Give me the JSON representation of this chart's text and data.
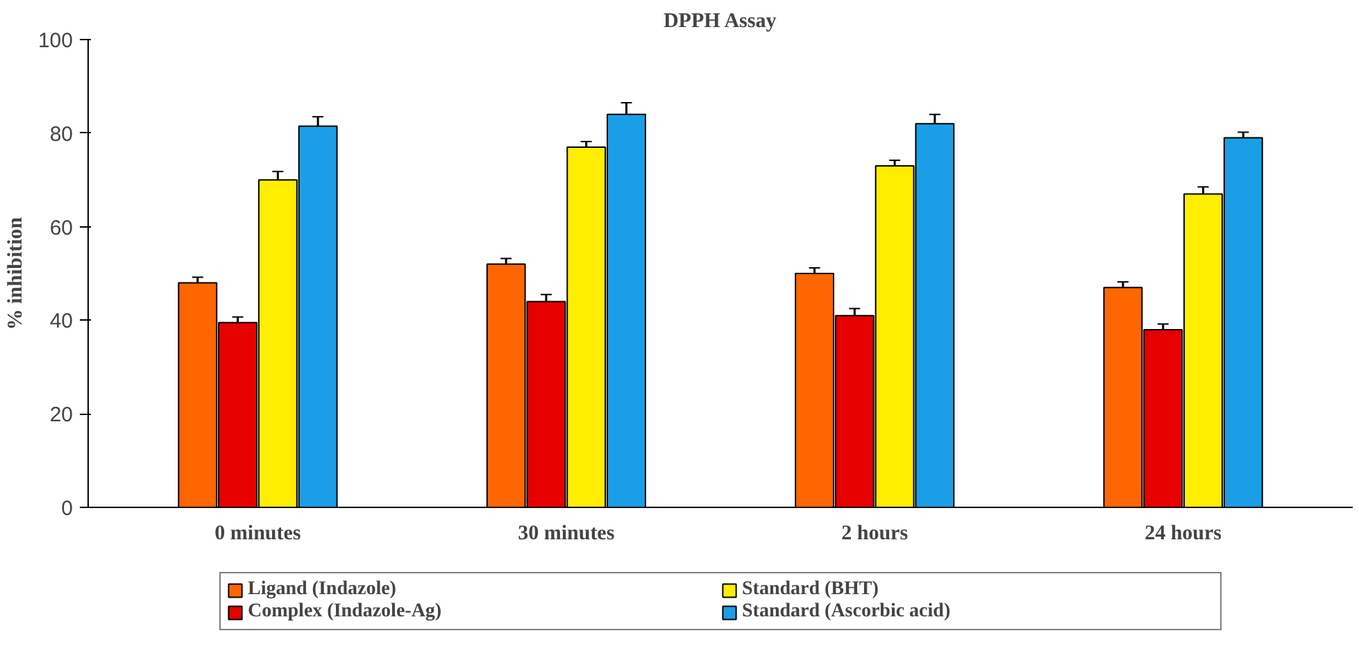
{
  "chart_data": {
    "type": "bar",
    "title": "DPPH Assay",
    "ylabel": "% inhibition",
    "categories": [
      "0 minutes",
      "30 minutes",
      "2 hours",
      "24 hours"
    ],
    "series": [
      {
        "name": "Ligand (Indazole)",
        "color": "#ff6600",
        "values": [
          48,
          52,
          50,
          47
        ],
        "errors": [
          1.2,
          1.2,
          1.2,
          1.2
        ]
      },
      {
        "name": "Complex (Indazole-Ag)",
        "color": "#e60000",
        "values": [
          39.5,
          44,
          41,
          38
        ],
        "errors": [
          1.2,
          1.5,
          1.5,
          1.2
        ]
      },
      {
        "name": "Standard (BHT)",
        "color": "#ffee00",
        "values": [
          70,
          77,
          73,
          67
        ],
        "errors": [
          1.8,
          1.2,
          1.2,
          1.5
        ]
      },
      {
        "name": "Standard (Ascorbic acid)",
        "color": "#1a9fe6",
        "values": [
          81.5,
          84,
          82,
          79
        ],
        "errors": [
          2,
          2.5,
          2,
          1.2
        ]
      }
    ],
    "ylim": [
      0,
      100
    ],
    "yticks": [
      0,
      20,
      40,
      60,
      80,
      100
    ],
    "grid": false,
    "legend": "bottom"
  }
}
